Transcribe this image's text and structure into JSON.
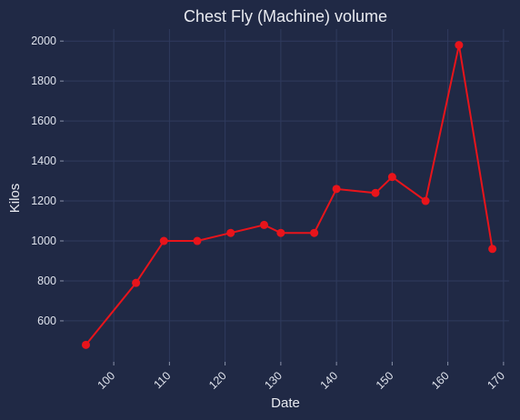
{
  "chart_data": {
    "type": "line",
    "title": "Chest Fly (Machine) volume",
    "xlabel": "Date",
    "ylabel": "Kilos",
    "x": [
      95,
      104,
      109,
      115,
      121,
      127,
      130,
      136,
      140,
      147,
      150,
      156,
      162,
      168
    ],
    "y": [
      480,
      790,
      1000,
      1000,
      1040,
      1080,
      1040,
      1040,
      1260,
      1240,
      1320,
      1200,
      1980,
      960
    ],
    "xlim": [
      91,
      171
    ],
    "ylim": [
      395,
      2060
    ],
    "xticks": [
      100,
      110,
      120,
      130,
      140,
      150,
      160,
      170
    ],
    "yticks": [
      600,
      800,
      1000,
      1200,
      1400,
      1600,
      1800,
      2000
    ],
    "grid": true,
    "colors": {
      "background": "#202945",
      "series": "#e8141b",
      "grid": "#2f3b5e",
      "text": "#e8eaf0"
    }
  }
}
